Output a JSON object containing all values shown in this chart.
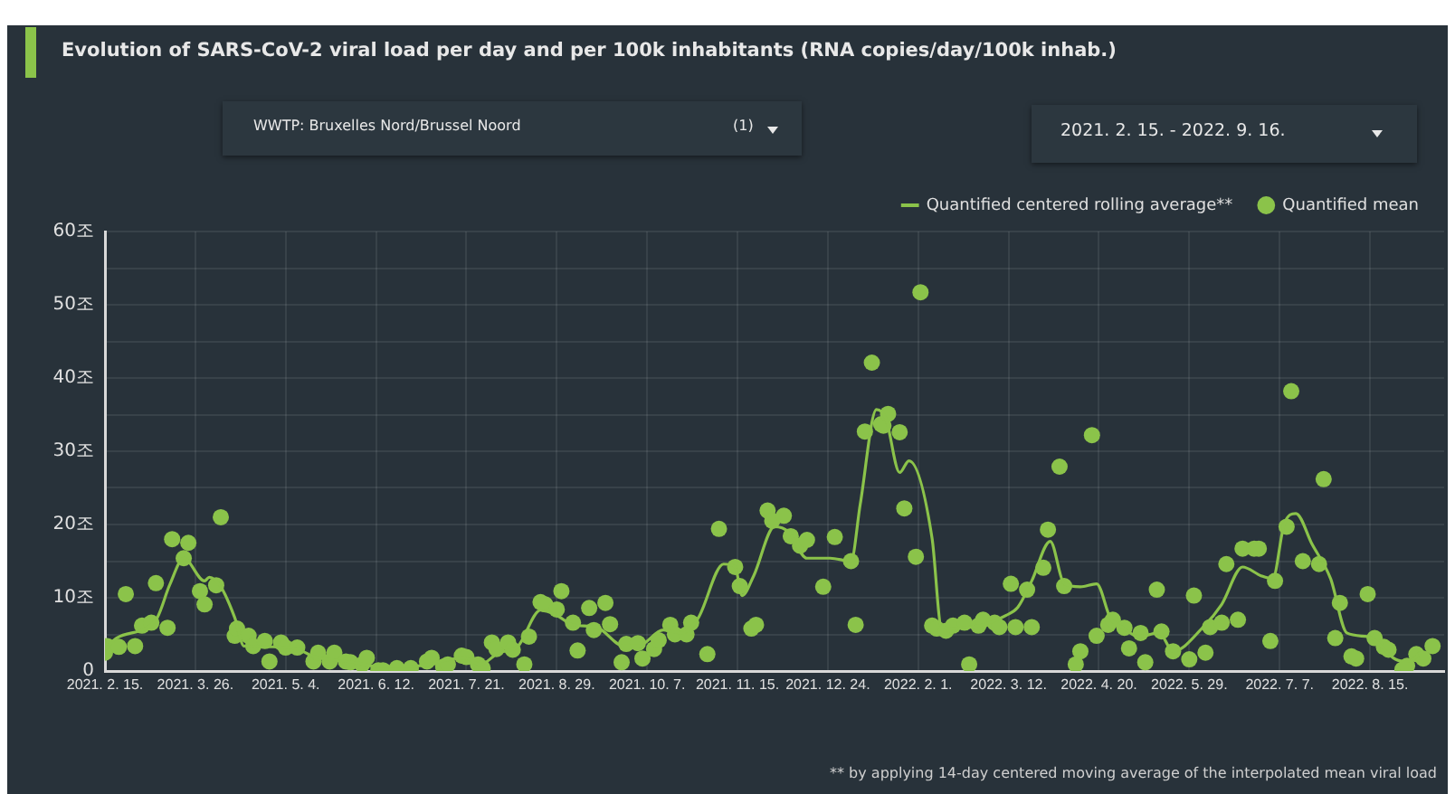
{
  "chart_data": {
    "type": "scatter",
    "title": "Evolution of SARS-CoV-2  viral load per day and per 100k inhabitants (RNA copies/day/100k inhab.)",
    "annotations": [
      "WWTP: Bruxelles Nord/Brussel Noord",
      "(1)",
      "2021. 2. 15. - 2022. 9. 16.",
      "** by applying 14-day centered moving average of the interpolated mean viral load"
    ],
    "xlim": [
      "2021-02-15",
      "2022-09-16"
    ],
    "xticks": [
      {
        "value": "2021-02-15",
        "label": "2021. 2. 15."
      },
      {
        "value": "2021-03-26",
        "label": "2021. 3. 26."
      },
      {
        "value": "2021-05-04",
        "label": "2021. 5. 4."
      },
      {
        "value": "2021-06-12",
        "label": "2021. 6. 12."
      },
      {
        "value": "2021-07-21",
        "label": "2021. 7. 21."
      },
      {
        "value": "2021-08-29",
        "label": "2021. 8. 29."
      },
      {
        "value": "2021-10-07",
        "label": "2021. 10. 7."
      },
      {
        "value": "2021-11-15",
        "label": "2021. 11. 15."
      },
      {
        "value": "2021-12-24",
        "label": "2021. 12. 24."
      },
      {
        "value": "2022-02-01",
        "label": "2022. 2. 1."
      },
      {
        "value": "2022-03-12",
        "label": "2022. 3. 12."
      },
      {
        "value": "2022-04-20",
        "label": "2022. 4. 20."
      },
      {
        "value": "2022-05-29",
        "label": "2022. 5. 29."
      },
      {
        "value": "2022-07-07",
        "label": "2022. 7. 7."
      },
      {
        "value": "2022-08-15",
        "label": "2022. 8. 15."
      }
    ],
    "ylim": [
      0,
      60
    ],
    "yticks": [
      0,
      {
        "value": 5,
        "label": null
      },
      {
        "value": 10,
        "label": "10조"
      },
      {
        "value": 15,
        "label": null
      },
      {
        "value": 20,
        "label": "20조"
      },
      {
        "value": 25,
        "label": null
      },
      {
        "value": 30,
        "label": "30조"
      },
      {
        "value": 35,
        "label": null
      },
      {
        "value": 40,
        "label": "40조"
      },
      {
        "value": 45,
        "label": null
      },
      {
        "value": 50,
        "label": "50조"
      },
      {
        "value": 55,
        "label": null
      },
      {
        "value": 60,
        "label": "60조"
      }
    ],
    "grid": true,
    "legend": "top right",
    "series": [
      {
        "name": "Quantified centered rolling average**",
        "type": "line",
        "color": "#8bc34a",
        "marker": "none",
        "line_style": "solid",
        "x": [
          "2021-02-15",
          "2021-02-20",
          "2021-03-09",
          "2021-03-15",
          "2021-03-21",
          "2021-03-30",
          "2021-04-01",
          "2021-04-06",
          "2021-04-12",
          "2021-04-16",
          "2021-04-28",
          "2021-05-09",
          "2021-05-16",
          "2021-06-04",
          "2021-06-13",
          "2021-06-27",
          "2021-07-20",
          "2021-07-27",
          "2021-08-04",
          "2021-08-12",
          "2021-08-22",
          "2021-08-29",
          "2021-09-05",
          "2021-09-15",
          "2021-09-27",
          "2021-10-03",
          "2021-10-14",
          "2021-10-22",
          "2021-10-29",
          "2021-11-09",
          "2021-11-14",
          "2021-11-17",
          "2021-11-22",
          "2021-12-01",
          "2021-12-07",
          "2021-12-15",
          "2021-12-25",
          "2022-01-03",
          "2022-01-07",
          "2022-01-14",
          "2022-01-18",
          "2022-01-24",
          "2022-01-28",
          "2022-02-07",
          "2022-02-11",
          "2022-02-15",
          "2022-02-24",
          "2022-03-02",
          "2022-03-11",
          "2022-03-16",
          "2022-03-22",
          "2022-03-30",
          "2022-04-05",
          "2022-04-12",
          "2022-04-19",
          "2022-04-25",
          "2022-04-30",
          "2022-05-07",
          "2022-05-16",
          "2022-05-22",
          "2022-06-04",
          "2022-06-12",
          "2022-06-21",
          "2022-06-29",
          "2022-07-04",
          "2022-07-09",
          "2022-07-14",
          "2022-07-21",
          "2022-07-29",
          "2022-08-05",
          "2022-08-14",
          "2022-08-26",
          "2022-08-31",
          "2022-09-05"
        ],
        "values": [
          2.9,
          4.5,
          7,
          11.8,
          15.4,
          12.3,
          12.8,
          11.5,
          7.3,
          3.4,
          3.3,
          3.0,
          2,
          1.1,
          0.6,
          0.6,
          1.8,
          0.9,
          2.5,
          3.3,
          8.3,
          7.6,
          6.3,
          6.0,
          3.4,
          3.4,
          5.6,
          5.2,
          7.2,
          14.6,
          14.2,
          10.3,
          13.0,
          19.7,
          19.0,
          15.4,
          15.4,
          15.0,
          22.8,
          35.7,
          34.5,
          27.1,
          28.7,
          18.1,
          6.0,
          5.8,
          6.0,
          6.4,
          7.6,
          8.7,
          12.3,
          17.7,
          11.9,
          11.5,
          11.9,
          7.2,
          6.0,
          4.7,
          5.2,
          2.7,
          6.0,
          9.1,
          14.2,
          13.0,
          12.6,
          20.1,
          21.5,
          17.3,
          12.6,
          5.2,
          4.7,
          1.6,
          1.3,
          2.1
        ]
      },
      {
        "name": "Quantified mean",
        "type": "scatter",
        "color": "#8bc34a",
        "marker": "circle",
        "x": [
          "2021-02-15",
          "2021-02-16",
          "2021-02-21",
          "2021-02-24",
          "2021-02-28",
          "2021-03-03",
          "2021-03-07",
          "2021-03-09",
          "2021-03-14",
          "2021-03-16",
          "2021-03-21",
          "2021-03-23",
          "2021-03-28",
          "2021-03-30",
          "2021-04-04",
          "2021-04-06",
          "2021-04-12",
          "2021-04-13",
          "2021-04-18",
          "2021-04-20",
          "2021-04-25",
          "2021-04-27",
          "2021-05-02",
          "2021-05-04",
          "2021-05-09",
          "2021-05-16",
          "2021-05-18",
          "2021-05-23",
          "2021-05-25",
          "2021-05-30",
          "2021-06-01",
          "2021-06-06",
          "2021-06-08",
          "2021-06-13",
          "2021-06-15",
          "2021-06-21",
          "2021-06-27",
          "2021-07-04",
          "2021-07-06",
          "2021-07-11",
          "2021-07-13",
          "2021-07-19",
          "2021-07-21",
          "2021-07-26",
          "2021-07-28",
          "2021-08-01",
          "2021-08-03",
          "2021-08-08",
          "2021-08-10",
          "2021-08-15",
          "2021-08-17",
          "2021-08-22",
          "2021-08-24",
          "2021-08-29",
          "2021-08-31",
          "2021-09-05",
          "2021-09-07",
          "2021-09-12",
          "2021-09-14",
          "2021-09-19",
          "2021-09-21",
          "2021-09-26",
          "2021-09-28",
          "2021-10-03",
          "2021-10-05",
          "2021-10-10",
          "2021-10-12",
          "2021-10-17",
          "2021-10-19",
          "2021-10-24",
          "2021-10-26",
          "2021-11-02",
          "2021-11-07",
          "2021-11-14",
          "2021-11-16",
          "2021-11-21",
          "2021-11-23",
          "2021-11-28",
          "2021-11-30",
          "2021-12-05",
          "2021-12-08",
          "2021-12-12",
          "2021-12-15",
          "2021-12-22",
          "2021-12-27",
          "2022-01-03",
          "2022-01-05",
          "2022-01-09",
          "2022-01-12",
          "2022-01-16",
          "2022-01-17",
          "2022-01-19",
          "2022-01-24",
          "2022-01-26",
          "2022-01-31",
          "2022-02-02",
          "2022-02-07",
          "2022-02-09",
          "2022-02-13",
          "2022-02-16",
          "2022-02-21",
          "2022-02-23",
          "2022-02-27",
          "2022-03-01",
          "2022-03-06",
          "2022-03-08",
          "2022-03-13",
          "2022-03-15",
          "2022-03-20",
          "2022-03-22",
          "2022-03-27",
          "2022-03-29",
          "2022-04-03",
          "2022-04-05",
          "2022-04-10",
          "2022-04-12",
          "2022-04-17",
          "2022-04-19",
          "2022-04-24",
          "2022-04-26",
          "2022-05-01",
          "2022-05-03",
          "2022-05-08",
          "2022-05-10",
          "2022-05-15",
          "2022-05-17",
          "2022-05-22",
          "2022-05-29",
          "2022-05-31",
          "2022-06-05",
          "2022-06-07",
          "2022-06-12",
          "2022-06-14",
          "2022-06-19",
          "2022-06-21",
          "2022-06-26",
          "2022-06-28",
          "2022-07-03",
          "2022-07-05",
          "2022-07-10",
          "2022-07-12",
          "2022-07-17",
          "2022-07-24",
          "2022-07-26",
          "2022-07-31",
          "2022-08-02",
          "2022-08-07",
          "2022-08-09",
          "2022-08-14",
          "2022-08-17",
          "2022-08-21",
          "2022-08-23",
          "2022-08-29",
          "2022-08-31",
          "2022-09-04",
          "2022-09-07",
          "2022-09-11"
        ],
        "values": [
          2.5,
          3.4,
          3.3,
          10.5,
          3.4,
          6.2,
          6.6,
          12,
          5.9,
          18,
          15.4,
          17.5,
          10.9,
          9.1,
          11.7,
          21,
          4.8,
          5.8,
          4.8,
          3.4,
          4.1,
          1.3,
          3.9,
          3.2,
          3.2,
          1.3,
          2.5,
          1.3,
          2.5,
          1.3,
          1.2,
          0.9,
          1.8,
          0.1,
          0.1,
          0.4,
          0.4,
          1.3,
          1.8,
          0.6,
          0.9,
          2.1,
          1.9,
          0.9,
          0.4,
          3.9,
          3.0,
          3.9,
          2.9,
          0.9,
          4.7,
          9.4,
          9.1,
          8.4,
          10.9,
          6.6,
          2.8,
          8.6,
          5.6,
          9.3,
          6.4,
          1.2,
          3.7,
          3.8,
          1.7,
          3.0,
          4.2,
          6.3,
          5.0,
          5.0,
          6.6,
          2.3,
          19.4,
          14.2,
          11.6,
          5.8,
          6.3,
          21.9,
          20.5,
          21.2,
          18.4,
          17.1,
          17.9,
          11.5,
          18.3,
          15.0,
          6.3,
          32.7,
          42.1,
          33.7,
          33.5,
          35.1,
          32.6,
          22.2,
          15.6,
          51.7,
          6.2,
          5.8,
          5.5,
          6.2,
          6.6,
          0.9,
          6.2,
          7.0,
          6.6,
          6.0,
          11.9,
          6.0,
          11.1,
          6.0,
          14.1,
          19.3,
          27.9,
          11.6,
          0.9,
          2.7,
          32.2,
          4.8,
          6.3,
          7.0,
          5.9,
          3.1,
          5.2,
          1.2,
          11.1,
          5.4,
          2.7,
          1.6,
          10.3,
          2.5,
          6.0,
          6.6,
          14.6,
          7.0,
          16.7,
          16.7,
          16.7,
          4.1,
          12.3,
          19.7,
          38.2,
          15.0,
          14.6,
          26.2,
          4.5,
          9.3,
          2.0,
          1.7,
          10.5,
          4.5,
          3.3,
          2.9,
          0.2,
          0.7,
          2.3,
          1.7,
          3.4
        ]
      }
    ]
  }
}
